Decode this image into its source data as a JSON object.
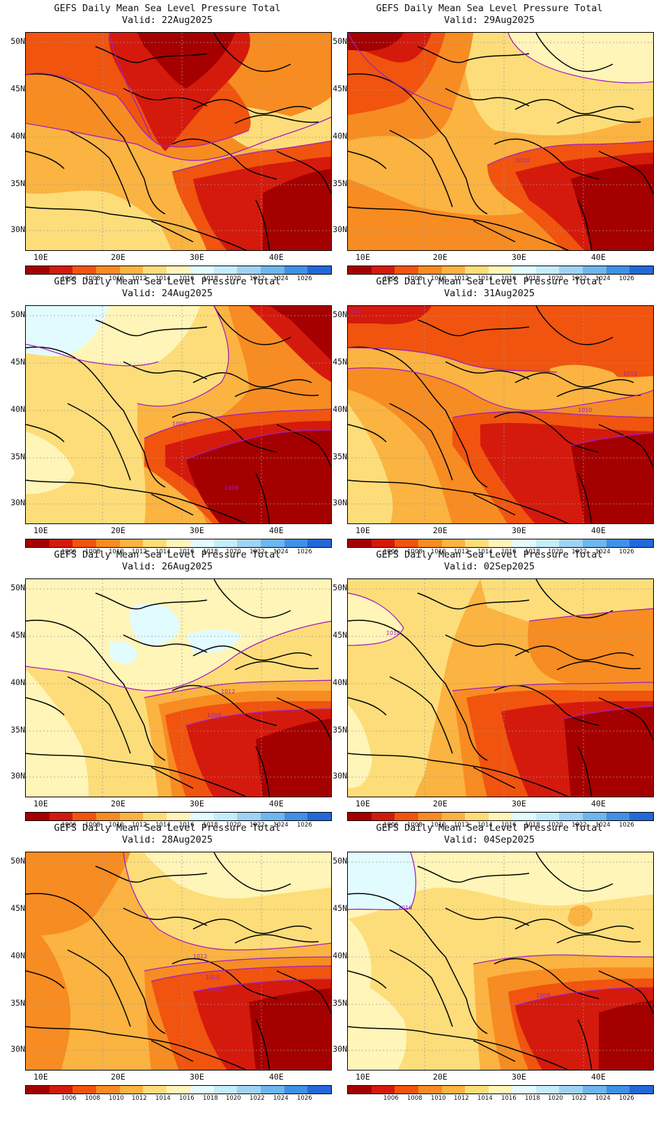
{
  "panels": [
    {
      "title": "GEFS Daily Mean Sea Level Pressure Total",
      "valid": "Valid: 22Aug2025",
      "contour_labels": []
    },
    {
      "title": "GEFS Daily Mean Sea Level Pressure Total",
      "valid": "Valid: 29Aug2025",
      "contour_labels": [
        "1010"
      ]
    },
    {
      "title": "GEFS Daily Mean Sea Level Pressure Total",
      "valid": "Valid: 24Aug2025",
      "contour_labels": [
        "1008",
        "1008"
      ]
    },
    {
      "title": "GEFS Daily Mean Sea Level Pressure Total",
      "valid": "Valid: 31Aug2025",
      "contour_labels": [
        "1008",
        "1012",
        "1010"
      ]
    },
    {
      "title": "GEFS Daily Mean Sea Level Pressure Total",
      "valid": "Valid: 26Aug2025",
      "contour_labels": [
        "1012",
        "1008"
      ]
    },
    {
      "title": "GEFS Daily Mean Sea Level Pressure Total",
      "valid": "Valid: 02Sep2025",
      "contour_labels": [
        "1014"
      ]
    },
    {
      "title": "GEFS Daily Mean Sea Level Pressure Total",
      "valid": "Valid: 28Aug2025",
      "contour_labels": [
        "1012",
        "1010",
        "1008"
      ]
    },
    {
      "title": "GEFS Daily Mean Sea Level Pressure Total",
      "valid": "Valid: 04Sep2025",
      "contour_labels": [
        "1016",
        "1008"
      ]
    }
  ],
  "axes": {
    "lat_labels": [
      "50N",
      "45N",
      "40N",
      "35N",
      "30N"
    ],
    "lon_labels": [
      "10E",
      "20E",
      "30E",
      "40E"
    ]
  },
  "colorbar": {
    "colors": [
      "#a50000",
      "#d41a0c",
      "#f0540f",
      "#f78c22",
      "#fbb341",
      "#fddd7a",
      "#fff5b8",
      "#e2fbff",
      "#c4ecfb",
      "#9fd3f5",
      "#6eb6ee",
      "#3f91e6",
      "#2468d8"
    ],
    "labels": [
      "1006",
      "1008",
      "1010",
      "1012",
      "1014",
      "1016",
      "1018",
      "1020",
      "1022",
      "1024",
      "1026"
    ]
  },
  "contour_color": "#a020c0"
}
